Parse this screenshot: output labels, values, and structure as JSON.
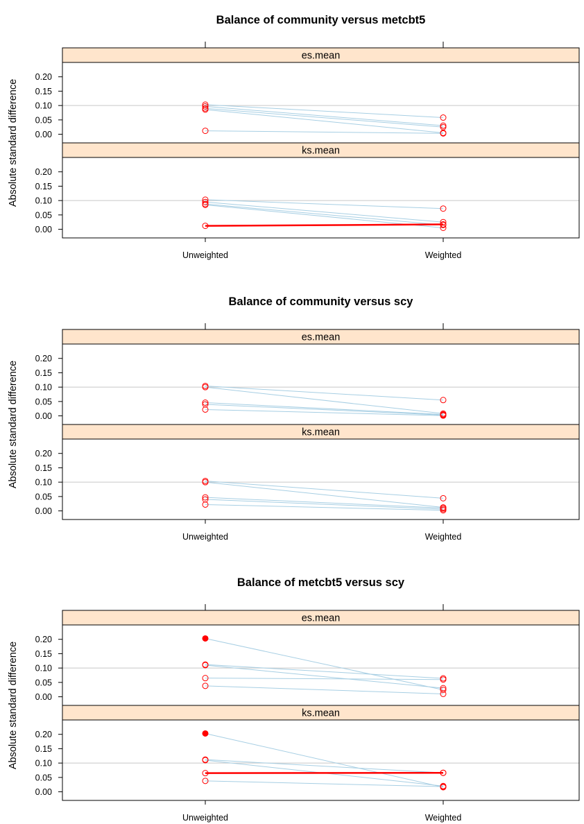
{
  "chart_data": [
    {
      "type": "line",
      "title": "Balance of community versus metcbt5",
      "ylabel": "Absolute standard difference",
      "categories": [
        "Unweighted",
        "Weighted"
      ],
      "yticks": [
        "0.00",
        "0.05",
        "0.10",
        "0.15",
        "0.20"
      ],
      "ylim": [
        -0.03,
        0.25
      ],
      "colors": {
        "line": "#a6cee3",
        "highlight": "#ff0000",
        "point": "#ff0000",
        "strip": "#ffe5cc",
        "grid": "#c8c8c8"
      },
      "panels": [
        {
          "label": "es.mean",
          "series": [
            {
              "values": [
                0.103,
                0.058
              ],
              "highlight": false
            },
            {
              "values": [
                0.097,
                0.03
              ],
              "highlight": false
            },
            {
              "values": [
                0.09,
                0.025
              ],
              "highlight": false
            },
            {
              "values": [
                0.086,
                0.005
              ],
              "highlight": false
            },
            {
              "values": [
                0.012,
                0.003
              ],
              "highlight": false
            }
          ],
          "filled_points": []
        },
        {
          "label": "ks.mean",
          "series": [
            {
              "values": [
                0.103,
                0.072
              ],
              "highlight": false
            },
            {
              "values": [
                0.095,
                0.025
              ],
              "highlight": false
            },
            {
              "values": [
                0.088,
                0.015
              ],
              "highlight": false
            },
            {
              "values": [
                0.085,
                0.005
              ],
              "highlight": false
            },
            {
              "values": [
                0.012,
                0.017
              ],
              "highlight": true
            }
          ],
          "filled_points": []
        }
      ]
    },
    {
      "type": "line",
      "title": "Balance of community versus scy",
      "ylabel": "Absolute standard difference",
      "categories": [
        "Unweighted",
        "Weighted"
      ],
      "yticks": [
        "0.00",
        "0.05",
        "0.10",
        "0.15",
        "0.20"
      ],
      "ylim": [
        -0.03,
        0.25
      ],
      "colors": {
        "line": "#a6cee3",
        "highlight": "#ff0000",
        "point": "#ff0000",
        "strip": "#ffe5cc",
        "grid": "#c8c8c8"
      },
      "panels": [
        {
          "label": "es.mean",
          "series": [
            {
              "values": [
                0.104,
                0.055
              ],
              "highlight": false
            },
            {
              "values": [
                0.1,
                0.008
              ],
              "highlight": false
            },
            {
              "values": [
                0.046,
                0.005
              ],
              "highlight": false
            },
            {
              "values": [
                0.04,
                0.003
              ],
              "highlight": false
            },
            {
              "values": [
                0.022,
                0.001
              ],
              "highlight": false
            }
          ],
          "filled_points": []
        },
        {
          "label": "ks.mean",
          "series": [
            {
              "values": [
                0.104,
                0.044
              ],
              "highlight": false
            },
            {
              "values": [
                0.1,
                0.012
              ],
              "highlight": false
            },
            {
              "values": [
                0.047,
                0.01
              ],
              "highlight": false
            },
            {
              "values": [
                0.04,
                0.006
              ],
              "highlight": false
            },
            {
              "values": [
                0.022,
                0.002
              ],
              "highlight": false
            }
          ],
          "filled_points": []
        }
      ]
    },
    {
      "type": "line",
      "title": "Balance of metcbt5 versus scy",
      "ylabel": "Absolute standard difference",
      "categories": [
        "Unweighted",
        "Weighted"
      ],
      "yticks": [
        "0.00",
        "0.05",
        "0.10",
        "0.15",
        "0.20"
      ],
      "ylim": [
        -0.03,
        0.25
      ],
      "colors": {
        "line": "#a6cee3",
        "highlight": "#ff0000",
        "point": "#ff0000",
        "strip": "#ffe5cc",
        "grid": "#c8c8c8"
      },
      "panels": [
        {
          "label": "es.mean",
          "series": [
            {
              "values": [
                0.203,
                0.024
              ],
              "highlight": false
            },
            {
              "values": [
                0.112,
                0.064
              ],
              "highlight": false
            },
            {
              "values": [
                0.11,
                0.03
              ],
              "highlight": false
            },
            {
              "values": [
                0.065,
                0.06
              ],
              "highlight": false
            },
            {
              "values": [
                0.038,
                0.01
              ],
              "highlight": false
            }
          ],
          "filled_points": [
            0
          ]
        },
        {
          "label": "ks.mean",
          "series": [
            {
              "values": [
                0.203,
                0.016
              ],
              "highlight": false
            },
            {
              "values": [
                0.112,
                0.066
              ],
              "highlight": false
            },
            {
              "values": [
                0.11,
                0.02
              ],
              "highlight": false
            },
            {
              "values": [
                0.065,
                0.066
              ],
              "highlight": true
            },
            {
              "values": [
                0.038,
                0.018
              ],
              "highlight": false
            }
          ],
          "filled_points": [
            0
          ]
        }
      ]
    }
  ]
}
